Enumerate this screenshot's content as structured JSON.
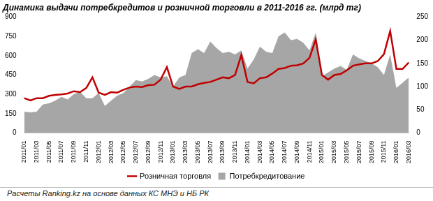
{
  "chart_data": {
    "type": "line",
    "title": "Динамика выдачи потребкредитов и розничной торговли в 2011-2016 гг. (млрд тг)",
    "source": "Расчеты Ranking.kz на основе данных КС МНЭ и НБ РК",
    "categories": [
      "2011/01",
      null,
      "2011/03",
      null,
      "2011/05",
      null,
      "2011/07",
      null,
      "2011/09",
      null,
      "2011/11",
      null,
      "2012/01",
      null,
      "2012/03",
      null,
      "2012/05",
      null,
      "2012/07",
      null,
      "2012/09",
      null,
      "2012/11",
      null,
      "2013/01",
      null,
      "2013/03",
      null,
      "2013/05",
      null,
      "2013/07",
      null,
      "2013/09",
      null,
      "2013/11",
      null,
      "2014/01",
      null,
      "2014/03",
      null,
      "2014/05",
      null,
      "2014/07",
      null,
      "2014/09",
      null,
      "2014/11",
      null,
      "2015/01",
      null,
      "2015/03",
      null,
      "2015/05",
      null,
      "2015/07",
      null,
      "2015/09",
      null,
      "2015/11",
      null,
      "2016/01",
      null,
      "2016/03"
    ],
    "series": [
      {
        "name": "Потребкредитование",
        "type": "area",
        "color": "#a6a6a6",
        "values": [
          165,
          160,
          165,
          220,
          230,
          250,
          280,
          260,
          300,
          320,
          270,
          270,
          310,
          210,
          250,
          290,
          310,
          360,
          410,
          400,
          420,
          450,
          430,
          440,
          360,
          430,
          450,
          620,
          650,
          620,
          710,
          660,
          620,
          630,
          610,
          640,
          500,
          570,
          670,
          630,
          620,
          750,
          780,
          720,
          730,
          700,
          640,
          780,
          440,
          470,
          500,
          520,
          490,
          610,
          580,
          560,
          540,
          510,
          450,
          610,
          350,
          390,
          430
        ]
      },
      {
        "name": "Розничная торговля",
        "type": "line",
        "color": "#c00000",
        "axis": "y2",
        "values": [
          75,
          70,
          75,
          75,
          80,
          82,
          83,
          85,
          90,
          88,
          97,
          120,
          87,
          82,
          88,
          87,
          93,
          98,
          100,
          99,
          103,
          104,
          115,
          142,
          100,
          95,
          100,
          100,
          105,
          108,
          110,
          115,
          120,
          118,
          125,
          168,
          110,
          107,
          118,
          120,
          128,
          138,
          140,
          145,
          146,
          150,
          162,
          202,
          125,
          115,
          125,
          127,
          135,
          145,
          148,
          150,
          150,
          155,
          170,
          220,
          138,
          138,
          152
        ]
      }
    ],
    "ylim": [
      0,
      900
    ],
    "yticks": [
      0,
      150,
      300,
      450,
      600,
      750,
      900
    ],
    "y2lim": [
      0,
      250
    ],
    "y2ticks": [
      0,
      50,
      100,
      150,
      200,
      250
    ],
    "grid": false,
    "legend": "bottom"
  }
}
